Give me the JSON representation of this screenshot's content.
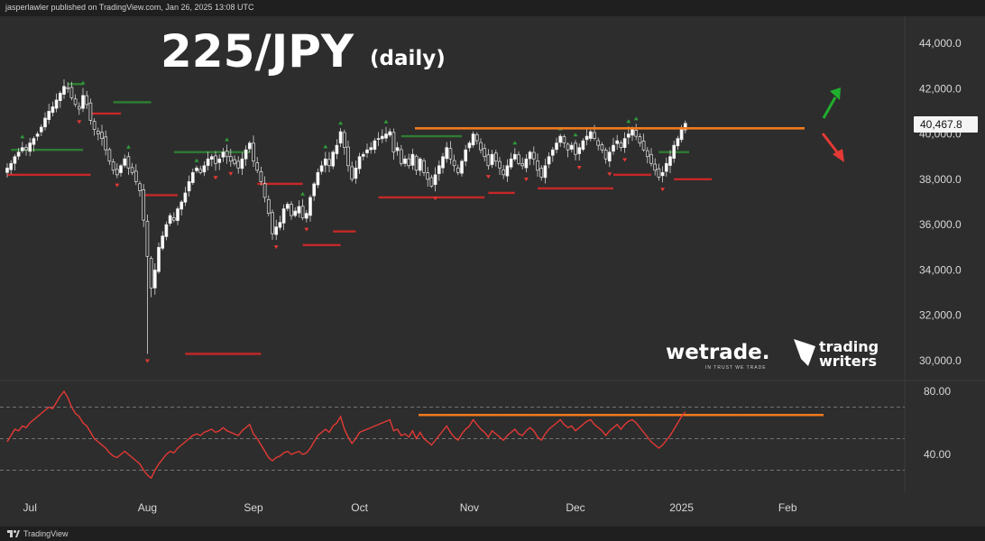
{
  "header": {
    "publisher": "jasperlawler published on TradingView.com, Jan 26, 2025 13:08 UTC"
  },
  "footer": {
    "brand": "TradingView"
  },
  "watermarks": {
    "wetrade": "wetrade.",
    "wetrade_tagline": "IN TRUST WE TRADE",
    "tw_line1": "trading",
    "tw_line2": "writers"
  },
  "chart_data": {
    "type": "candlestick",
    "title": "225/JPY",
    "subtitle": "(daily)",
    "price_axis": {
      "ticks": [
        "44,000.0",
        "42,000.0",
        "40,000.0",
        "38,000.0",
        "36,000.0",
        "34,000.0",
        "32,000.0",
        "30,000.0"
      ],
      "tick_values": [
        44000,
        42000,
        40000,
        38000,
        36000,
        34000,
        32000,
        30000
      ]
    },
    "rsi_axis": {
      "ticks": [
        "80.00",
        "40.00"
      ],
      "tick_values": [
        80,
        40
      ],
      "dashed_levels": [
        70,
        50,
        30
      ]
    },
    "x_ticks": [
      "Jul",
      "Aug",
      "Sep",
      "Oct",
      "Nov",
      "Dec",
      "2025",
      "Feb"
    ],
    "last_price": "40,467.8",
    "last_price_value": 40467.8,
    "resistance_level": 40250,
    "rsi_resistance_level": 65,
    "colors": {
      "up": "#ffffff",
      "down": "#ffffff",
      "resistance": "#f07a1e",
      "rsi_line": "#e53935",
      "arrow_up": "#1fae2e",
      "arrow_down": "#e53935",
      "stop_green": "#2e7d32",
      "stop_red": "#c62828"
    },
    "month_index": {
      "Jul": 6,
      "Aug": 37,
      "Sep": 65,
      "Oct": 93,
      "Nov": 122,
      "Dec": 150,
      "2025": 178,
      "Feb": 206
    },
    "closes": [
      38500,
      38700,
      39000,
      39200,
      39400,
      39300,
      39600,
      39800,
      40000,
      40300,
      40700,
      41000,
      41200,
      41500,
      41800,
      42100,
      42000,
      41600,
      41300,
      41100,
      41700,
      41300,
      40600,
      40200,
      40000,
      39800,
      39300,
      38800,
      38400,
      38200,
      38600,
      38900,
      38500,
      38300,
      37900,
      37500,
      36200,
      34600,
      33200,
      34000,
      35000,
      35500,
      36000,
      36400,
      36200,
      36700,
      37000,
      37400,
      37900,
      38300,
      38500,
      38300,
      38600,
      38900,
      39000,
      38700,
      38900,
      39200,
      39000,
      38800,
      38700,
      38500,
      38900,
      39300,
      39600,
      38800,
      38400,
      37900,
      37200,
      36500,
      35600,
      35900,
      36100,
      36700,
      36900,
      36400,
      36600,
      36800,
      36300,
      36500,
      37200,
      37800,
      38300,
      38600,
      38900,
      38600,
      39200,
      39500,
      40100,
      39400,
      38600,
      38000,
      38500,
      39000,
      39100,
      39300,
      39400,
      39700,
      39800,
      39900,
      40000,
      40100,
      39200,
      39400,
      38700,
      38900,
      38600,
      39100,
      38400,
      38900,
      38300,
      38000,
      37700,
      38200,
      38600,
      39000,
      39400,
      38900,
      38600,
      38300,
      38800,
      39300,
      39600,
      40000,
      39700,
      39300,
      39000,
      38600,
      39100,
      38800,
      38500,
      38200,
      38600,
      38900,
      39100,
      38700,
      38600,
      38900,
      39200,
      38900,
      38400,
      38100,
      38600,
      39000,
      39300,
      39600,
      39900,
      39600,
      39300,
      39500,
      39100,
      39400,
      39700,
      39900,
      40100,
      39800,
      39500,
      39300,
      38900,
      39200,
      39500,
      39700,
      39400,
      39800,
      40000,
      40200,
      39900,
      39600,
      39300,
      39000,
      38700,
      38400,
      38100,
      38300,
      38700,
      39000,
      39500,
      39800,
      40250,
      40467.8
    ],
    "rsi": [
      48,
      52,
      56,
      55,
      58,
      57,
      60,
      62,
      64,
      66,
      68,
      70,
      69,
      73,
      77,
      80,
      76,
      70,
      66,
      64,
      60,
      58,
      54,
      50,
      48,
      46,
      44,
      41,
      39,
      38,
      40,
      42,
      40,
      38,
      36,
      34,
      30,
      27,
      25,
      30,
      34,
      37,
      40,
      42,
      41,
      44,
      46,
      48,
      50,
      52,
      53,
      52,
      54,
      55,
      56,
      54,
      55,
      57,
      55,
      54,
      53,
      52,
      55,
      57,
      59,
      53,
      50,
      46,
      42,
      38,
      36,
      38,
      39,
      41,
      42,
      40,
      41,
      42,
      40,
      41,
      44,
      48,
      52,
      54,
      56,
      54,
      58,
      60,
      64,
      56,
      51,
      47,
      50,
      54,
      55,
      56,
      57,
      58,
      59,
      60,
      61,
      62,
      55,
      56,
      52,
      53,
      51,
      55,
      50,
      54,
      50,
      48,
      46,
      49,
      52,
      55,
      58,
      54,
      51,
      49,
      53,
      56,
      58,
      62,
      59,
      56,
      54,
      51,
      55,
      53,
      51,
      49,
      52,
      54,
      56,
      53,
      52,
      55,
      57,
      55,
      51,
      49,
      53,
      56,
      58,
      60,
      62,
      59,
      57,
      58,
      55,
      57,
      59,
      61,
      62,
      59,
      57,
      55,
      52,
      55,
      57,
      59,
      56,
      59,
      61,
      62,
      60,
      57,
      54,
      51,
      48,
      46,
      44,
      46,
      49,
      52,
      56,
      60,
      64,
      67
    ]
  }
}
